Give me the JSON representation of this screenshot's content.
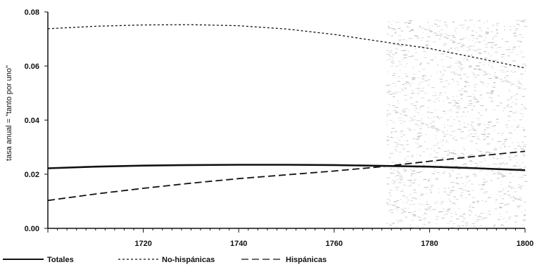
{
  "chart_data": {
    "type": "line",
    "title": "",
    "xlabel": "",
    "ylabel": "tasa anual = \"tanto por uno\"",
    "xlim": [
      1700,
      1800
    ],
    "ylim": [
      0,
      0.08
    ],
    "x_ticks": [
      "1720",
      "1740",
      "1760",
      "1780",
      "1800"
    ],
    "y_ticks": [
      "0.00",
      "0.02",
      "0.04",
      "0.06",
      "0.08"
    ],
    "grid": false,
    "legend_position": "bottom",
    "series": [
      {
        "name": "Totales",
        "style": "solid",
        "color": "#111111",
        "x": [
          1700,
          1710,
          1720,
          1730,
          1740,
          1750,
          1760,
          1770,
          1780,
          1790,
          1800
        ],
        "values": [
          0.0222,
          0.0228,
          0.0232,
          0.0234,
          0.0235,
          0.0235,
          0.0234,
          0.0231,
          0.0228,
          0.0222,
          0.0215
        ]
      },
      {
        "name": "No-hispánicas",
        "style": "dotted",
        "color": "#111111",
        "x": [
          1700,
          1710,
          1720,
          1730,
          1740,
          1750,
          1760,
          1770,
          1780,
          1790,
          1800
        ],
        "values": [
          0.0738,
          0.0747,
          0.0752,
          0.0753,
          0.0749,
          0.0737,
          0.0717,
          0.069,
          0.0665,
          0.063,
          0.0593
        ]
      },
      {
        "name": "Hispánicas",
        "style": "dashed",
        "color": "#111111",
        "x": [
          1700,
          1710,
          1720,
          1730,
          1740,
          1750,
          1760,
          1770,
          1780,
          1790,
          1800
        ],
        "values": [
          0.0103,
          0.0127,
          0.0148,
          0.0167,
          0.0184,
          0.0198,
          0.0212,
          0.0228,
          0.0248,
          0.0267,
          0.0285
        ]
      }
    ]
  }
}
